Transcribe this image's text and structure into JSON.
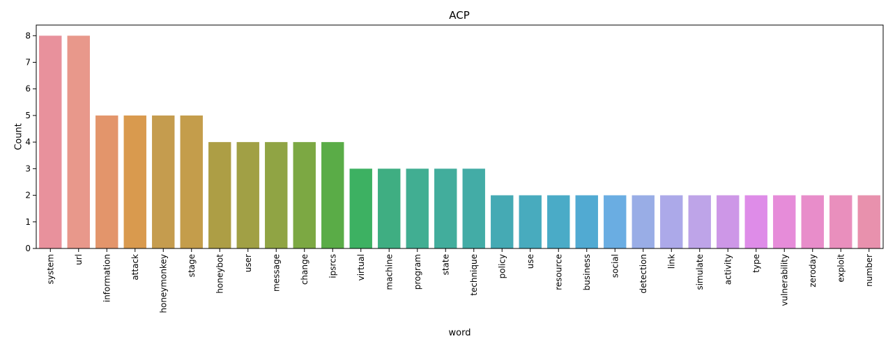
{
  "chart_data": {
    "type": "bar",
    "title": "ACP",
    "xlabel": "word",
    "ylabel": "Count",
    "ylim": [
      0,
      8.4
    ],
    "yticks": [
      0,
      1,
      2,
      3,
      4,
      5,
      6,
      7,
      8
    ],
    "grid": false,
    "categories": [
      "system",
      "url",
      "information",
      "attack",
      "honeymonkey",
      "stage",
      "honeybot",
      "user",
      "message",
      "change",
      "ipsrcs",
      "virtual",
      "machine",
      "program",
      "state",
      "technique",
      "policy",
      "use",
      "resource",
      "business",
      "social",
      "detection",
      "link",
      "simulate",
      "activity",
      "type",
      "vulnerability",
      "zeroday",
      "exploit",
      "number"
    ],
    "values": [
      8,
      8,
      5,
      5,
      5,
      5,
      4,
      4,
      4,
      4,
      4,
      3,
      3,
      3,
      3,
      3,
      2,
      2,
      2,
      2,
      2,
      2,
      2,
      2,
      2,
      2,
      2,
      2,
      2,
      2
    ],
    "colors": [
      "#e8919c",
      "#e8988b",
      "#e3956b",
      "#d99a4e",
      "#c59c4e",
      "#c49d4b",
      "#ad9e45",
      "#a1a045",
      "#90a444",
      "#7ca843",
      "#5aac47",
      "#3db162",
      "#3fae82",
      "#41ae92",
      "#42ad9c",
      "#43aca6",
      "#45aab4",
      "#48abbe",
      "#4aabc7",
      "#51aad2",
      "#6aade2",
      "#99ade6",
      "#aca9e9",
      "#bea4e8",
      "#cd97e7",
      "#de8ce8",
      "#e68cd9",
      "#e88dca",
      "#e98fbd",
      "#e891ad"
    ]
  }
}
